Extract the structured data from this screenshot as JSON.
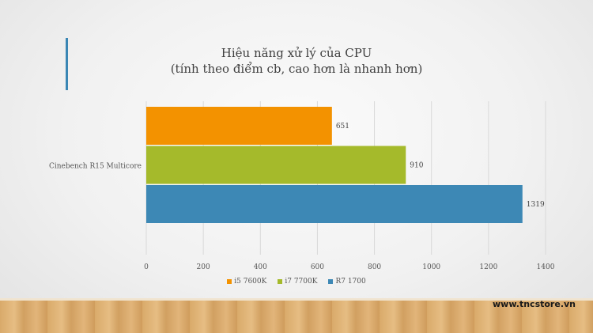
{
  "chart_data": {
    "type": "bar",
    "orientation": "horizontal",
    "title": "Hiệu năng xử lý của CPU",
    "subtitle": "(tính theo điểm cb, cao hơn là nhanh hơn)",
    "categories": [
      "Cinebench R15 Multicore"
    ],
    "series": [
      {
        "name": "i5 7600K",
        "values": [
          651
        ],
        "color": "#f39200"
      },
      {
        "name": "i7 7700K",
        "values": [
          910
        ],
        "color": "#a5ba2b"
      },
      {
        "name": "R7 1700",
        "values": [
          1319
        ],
        "color": "#3d88b5"
      }
    ],
    "xlim": [
      0,
      1400
    ],
    "xticks": [
      0,
      200,
      400,
      600,
      800,
      1000,
      1200,
      1400
    ],
    "grid": true,
    "legend_position": "bottom"
  },
  "footer": {
    "website": "www.tncstore.vn"
  }
}
